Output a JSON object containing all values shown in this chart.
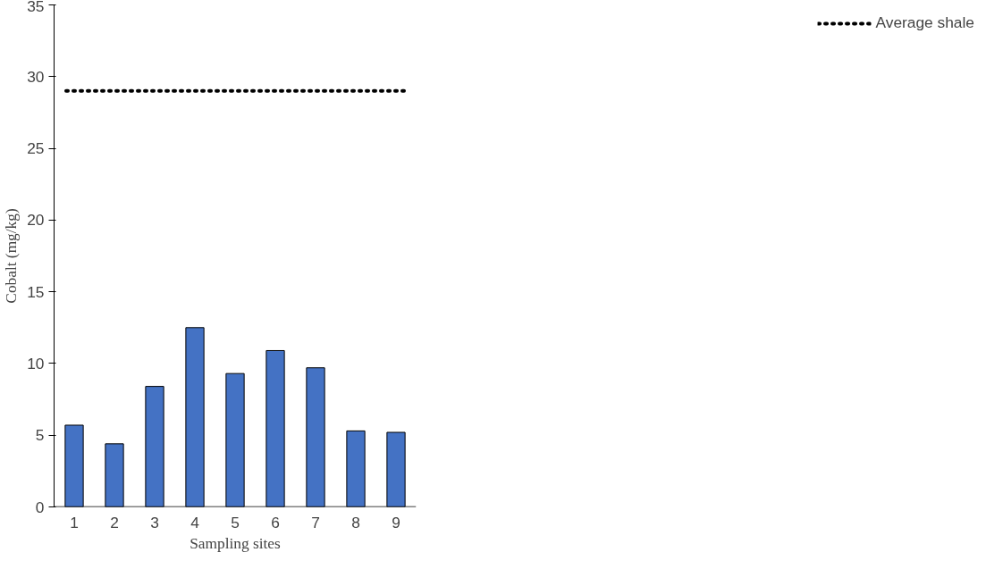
{
  "chart_data": {
    "type": "bar",
    "xlabel": "Sampling sites",
    "ylabel": "Cobalt (mg/kg)",
    "categories": [
      "1",
      "2",
      "3",
      "4",
      "5",
      "6",
      "7",
      "8",
      "9"
    ],
    "values": [
      5.7,
      4.4,
      8.4,
      12.5,
      9.3,
      10.9,
      9.7,
      5.3,
      5.2
    ],
    "color": "#4472c4",
    "ylim": [
      0,
      35
    ],
    "yticks": [
      0,
      5,
      10,
      15,
      20,
      25,
      30,
      35
    ],
    "ref_lines": [
      {
        "axis": "y",
        "value": 29,
        "label": "Average shale",
        "color": "#000000",
        "line_style": "dotted"
      }
    ],
    "legend": "right",
    "grid": false
  }
}
